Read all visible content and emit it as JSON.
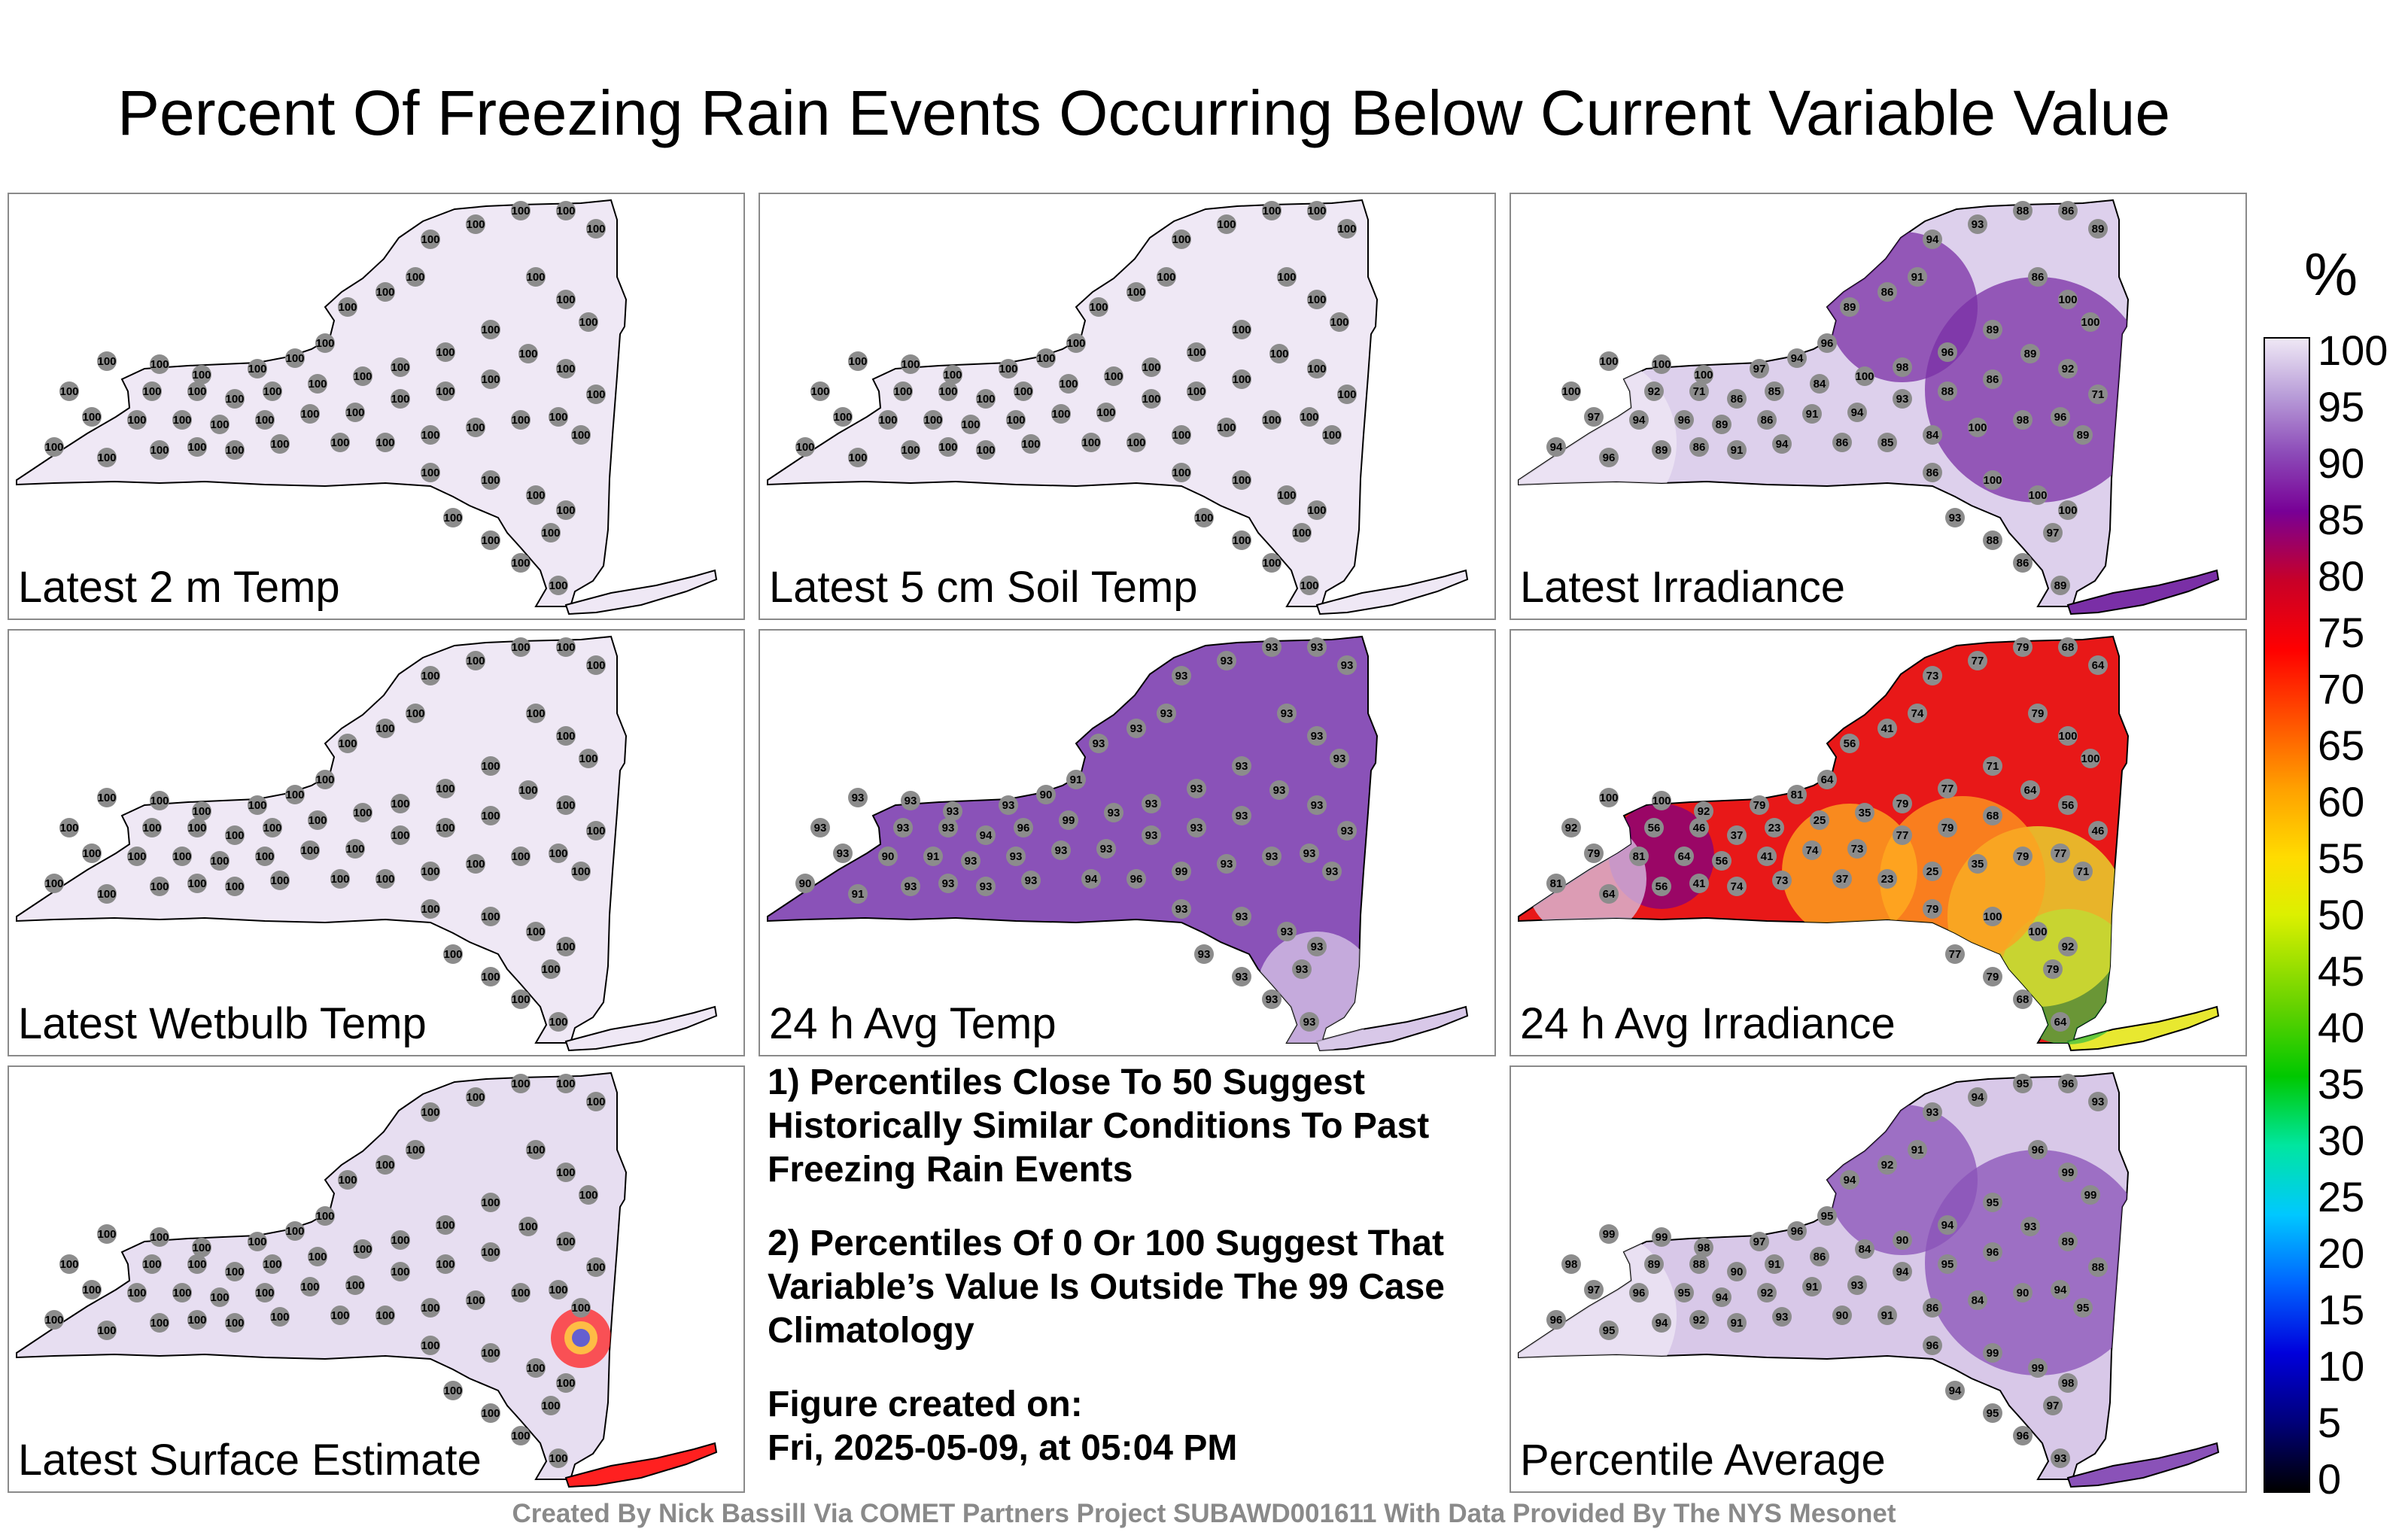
{
  "title": "Percent Of Freezing Rain Events Occurring Below Current Variable Value",
  "panels": [
    {
      "label": "Latest 2 m Temp",
      "base": "#efe8f5",
      "accent": null,
      "values": [
        "100",
        "100",
        "100",
        "100",
        "100",
        "100",
        "100",
        "100",
        "100",
        "100",
        "100",
        "100",
        "100",
        "100",
        "100",
        "100",
        "100",
        "100",
        "100",
        "100",
        "100",
        "100",
        "100",
        "100"
      ]
    },
    {
      "label": "Latest 5 cm Soil Temp",
      "base": "#efe8f5",
      "accent": null,
      "values": [
        "100",
        "100",
        "100",
        "100",
        "100",
        "100",
        "100",
        "100",
        "100",
        "100",
        "100",
        "100",
        "100",
        "100",
        "100",
        "100",
        "100",
        "100",
        "100",
        "100",
        "100",
        "100",
        "100",
        "100"
      ]
    },
    {
      "label": "Latest Irradiance",
      "base": "#ddd0ec",
      "accent": "#7a2fa6",
      "values": [
        "100",
        "100",
        "100",
        "97",
        "94",
        "96",
        "89",
        "86",
        "91",
        "94",
        "93",
        "88",
        "86",
        "89",
        "92",
        "71",
        "86",
        "85",
        "84",
        "100",
        "98",
        "96",
        "89",
        "86"
      ]
    },
    {
      "label": "Latest Wetbulb Temp",
      "base": "#efe8f5",
      "accent": null,
      "values": [
        "100",
        "100",
        "100",
        "100",
        "100",
        "100",
        "100",
        "100",
        "100",
        "100",
        "100",
        "100",
        "100",
        "100",
        "100",
        "100",
        "100",
        "100",
        "100",
        "100",
        "100",
        "100",
        "100",
        "100"
      ]
    },
    {
      "label": "24 h Avg Temp",
      "base": "#8a52b8",
      "accent": "#d8c8e8",
      "values": [
        "93",
        "93",
        "93",
        "93",
        "90",
        "91",
        "93",
        "93",
        "93",
        "93",
        "93",
        "93",
        "93",
        "93",
        "93",
        "93",
        "94",
        "96",
        "99",
        "93",
        "93",
        "93",
        "93",
        "93"
      ]
    },
    {
      "label": "24 h Avg Irradiance",
      "base": "#e81818",
      "accent": "#e8e830",
      "values": [
        "100",
        "100",
        "92",
        "79",
        "81",
        "64",
        "56",
        "41",
        "74",
        "73",
        "77",
        "79",
        "68",
        "64",
        "56",
        "46",
        "37",
        "23",
        "25",
        "35",
        "79",
        "77",
        "71",
        "79"
      ]
    },
    {
      "label": "Latest Surface Estimate",
      "base": "#e7def1",
      "accent": "#ff2020",
      "values": [
        "100",
        "100",
        "100",
        "100",
        "100",
        "100",
        "100",
        "100",
        "100",
        "100",
        "100",
        "100",
        "100",
        "100",
        "100",
        "100",
        "100",
        "100",
        "100",
        "100",
        "100",
        "100",
        "100",
        "100"
      ]
    },
    {
      "label": "Percentile Average",
      "base": "#d8c8e8",
      "accent": "#8a52b8",
      "values": [
        "99",
        "99",
        "98",
        "97",
        "96",
        "95",
        "94",
        "92",
        "91",
        "93",
        "94",
        "95",
        "96",
        "93",
        "89",
        "88",
        "90",
        "91",
        "86",
        "84",
        "90",
        "94",
        "95",
        "96"
      ]
    }
  ],
  "notes": {
    "note1": "1) Percentiles Close To 50 Suggest Historically Similar Conditions To Past Freezing Rain Events",
    "note2": "2) Percentiles Of 0 Or 100 Suggest That Variable’s Value Is Outside The 99 Case Climatology",
    "created_label": "Figure created on:",
    "created_date": "Fri, 2025-05-09, at 05:04 PM"
  },
  "colorbar": {
    "unit": "%",
    "ticks": [
      "100",
      "95",
      "90",
      "85",
      "80",
      "75",
      "70",
      "65",
      "60",
      "55",
      "50",
      "45",
      "40",
      "35",
      "30",
      "25",
      "20",
      "15",
      "10",
      "5",
      "0"
    ]
  },
  "credit": "Created By Nick Bassill Via COMET Partners Project SUBAWD001611 With Data Provided By The NYS Mesonet"
}
